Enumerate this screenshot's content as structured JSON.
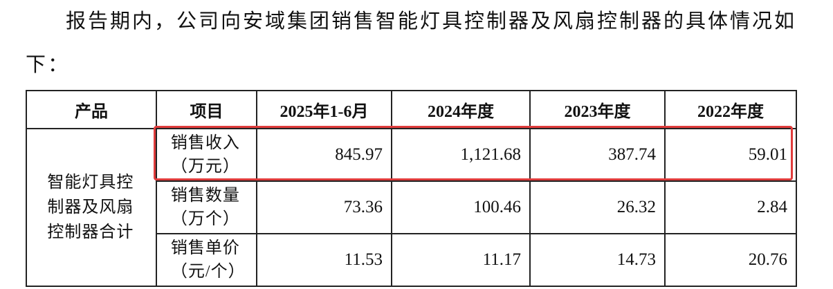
{
  "intro": "报告期内，公司向安域集团销售智能灯具控制器及风扇控制器的具体情况如下：",
  "table": {
    "header": [
      "产品",
      "项目",
      "2025年1-6月",
      "2024年度",
      "2023年度",
      "2022年度"
    ],
    "product": "智能灯具控制器及风扇控制器合计",
    "rows": [
      {
        "item": "销售收入（万元）",
        "values": [
          "845.97",
          "1,121.68",
          "387.74",
          "59.01"
        ]
      },
      {
        "item": "销售数量（万个）",
        "values": [
          "73.36",
          "100.46",
          "26.32",
          "2.84"
        ]
      },
      {
        "item": "销售单价（元/个）",
        "values": [
          "11.53",
          "11.17",
          "14.73",
          "20.76"
        ]
      }
    ]
  }
}
